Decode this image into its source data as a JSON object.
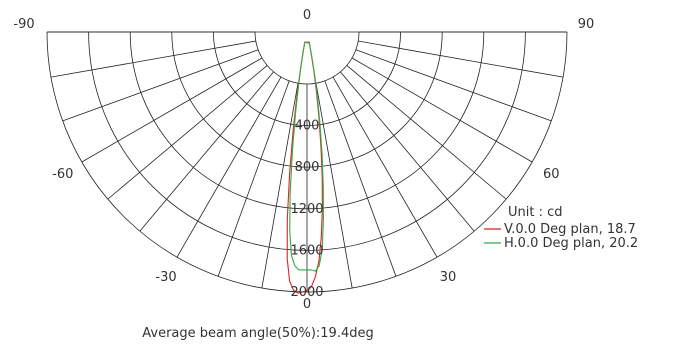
{
  "chart_data": {
    "type": "polar",
    "angle_ticks": [
      {
        "label": "-90",
        "angle": -90
      },
      {
        "label": "-60",
        "angle": -60
      },
      {
        "label": "-30",
        "angle": -30
      },
      {
        "label": "0",
        "angle": 0
      },
      {
        "label": "30",
        "angle": 30
      },
      {
        "label": "60",
        "angle": 60
      },
      {
        "label": "90",
        "angle": 90
      }
    ],
    "angle_grid_step": 10,
    "radial_ticks": [
      "400",
      "800",
      "1200",
      "1600",
      "2000"
    ],
    "radial_max": 2000,
    "bottom_angle_label": "0",
    "unit_label": "Unit : cd",
    "series": [
      {
        "name": "V.0.0 Deg plan, 18.7",
        "color": "#dd2222",
        "points": [
          [
            -12,
            80
          ],
          [
            -11,
            160
          ],
          [
            -10,
            280
          ],
          [
            -9,
            480
          ],
          [
            -8,
            760
          ],
          [
            -7,
            1100
          ],
          [
            -6,
            1450
          ],
          [
            -5,
            1750
          ],
          [
            -4,
            1920
          ],
          [
            -3,
            1990
          ],
          [
            -2,
            2010
          ],
          [
            -1,
            2000
          ],
          [
            0,
            1990
          ],
          [
            1,
            1960
          ],
          [
            2,
            1880
          ],
          [
            3,
            1760
          ],
          [
            4,
            1580
          ],
          [
            5,
            1360
          ],
          [
            6,
            1120
          ],
          [
            7,
            880
          ],
          [
            8,
            660
          ],
          [
            9,
            460
          ],
          [
            10,
            300
          ],
          [
            11,
            170
          ],
          [
            12,
            80
          ]
        ]
      },
      {
        "name": "H.0.0 Deg plan, 20.2",
        "color": "#33aa44",
        "points": [
          [
            -12,
            80
          ],
          [
            -11,
            150
          ],
          [
            -10,
            260
          ],
          [
            -9,
            420
          ],
          [
            -8,
            640
          ],
          [
            -7,
            920
          ],
          [
            -6,
            1240
          ],
          [
            -5,
            1530
          ],
          [
            -4,
            1720
          ],
          [
            -3,
            1800
          ],
          [
            -2,
            1830
          ],
          [
            -1,
            1830
          ],
          [
            0,
            1830
          ],
          [
            1,
            1830
          ],
          [
            2,
            1840
          ],
          [
            3,
            1800
          ],
          [
            4,
            1680
          ],
          [
            5,
            1450
          ],
          [
            6,
            1200
          ],
          [
            7,
            950
          ],
          [
            8,
            720
          ],
          [
            9,
            520
          ],
          [
            10,
            350
          ],
          [
            11,
            210
          ],
          [
            12,
            90
          ]
        ]
      }
    ],
    "footer": "Average beam angle(50%):19.4deg"
  }
}
